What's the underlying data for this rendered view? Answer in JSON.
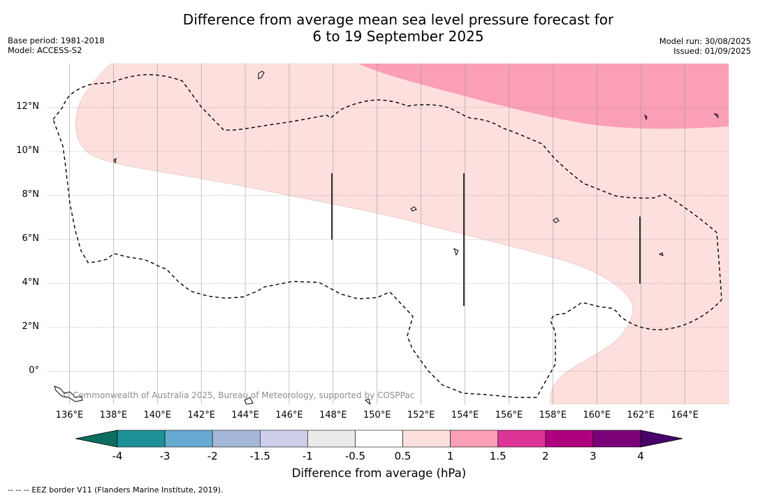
{
  "header": {
    "title_line1": "Difference from average mean sea level pressure forecast for",
    "title_line2": "6 to 19 September 2025",
    "base_period": "Base period: 1981-2018",
    "model": "Model: ACCESS-S2",
    "model_run": "Model run: 30/08/2025",
    "issued": "Issued: 01/09/2025"
  },
  "map": {
    "lon_range": [
      135,
      166
    ],
    "lat_range": [
      -1.5,
      14
    ],
    "lat_ticks": [
      {
        "value": 12,
        "label": "12°N"
      },
      {
        "value": 10,
        "label": "10°N"
      },
      {
        "value": 8,
        "label": "8°N"
      },
      {
        "value": 6,
        "label": "6°N"
      },
      {
        "value": 4,
        "label": "4°N"
      },
      {
        "value": 2,
        "label": "2°N"
      },
      {
        "value": 0,
        "label": "0°"
      }
    ],
    "lon_ticks": [
      {
        "value": 136,
        "label": "136°E"
      },
      {
        "value": 138,
        "label": "138°E"
      },
      {
        "value": 140,
        "label": "140°E"
      },
      {
        "value": 142,
        "label": "142°E"
      },
      {
        "value": 144,
        "label": "144°E"
      },
      {
        "value": 146,
        "label": "146°E"
      },
      {
        "value": 148,
        "label": "148°E"
      },
      {
        "value": 150,
        "label": "150°E"
      },
      {
        "value": 152,
        "label": "152°E"
      },
      {
        "value": 154,
        "label": "154°E"
      },
      {
        "value": 156,
        "label": "156°E"
      },
      {
        "value": 158,
        "label": "158°E"
      },
      {
        "value": 160,
        "label": "160°E"
      },
      {
        "value": 162,
        "label": "162°E"
      },
      {
        "value": 164,
        "label": "164°E"
      }
    ],
    "grid": true,
    "copyright": "© Commonwealth of Australia 2025, Bureau of Meteorology, supported by COSPPac",
    "colors": {
      "band_0_5_to_1": "#fde0dd",
      "band_1_to_1_5": "#fa9fb5",
      "eez": "#000000",
      "grid": "#999999"
    }
  },
  "colorbar": {
    "title": "Difference from average (hPa)",
    "ticks": [
      "-4",
      "-3",
      "-2",
      "-1.5",
      "-1",
      "-0.5",
      "0.5",
      "1",
      "1.5",
      "2",
      "3",
      "4"
    ],
    "segments": [
      "#1d9198",
      "#66a9d1",
      "#a5b8da",
      "#ccceea",
      "#ebebeb",
      "#ffffff",
      "#fde0dd",
      "#fa9fb5",
      "#dd3497",
      "#ae017e",
      "#7a0177"
    ],
    "extend_low": "#0d6e60",
    "extend_high": "#49006a"
  },
  "footer": {
    "legend_symbol": "--  --  --",
    "eez_note": "EEZ border V11 (Flanders Marine Institute, 2019)."
  }
}
